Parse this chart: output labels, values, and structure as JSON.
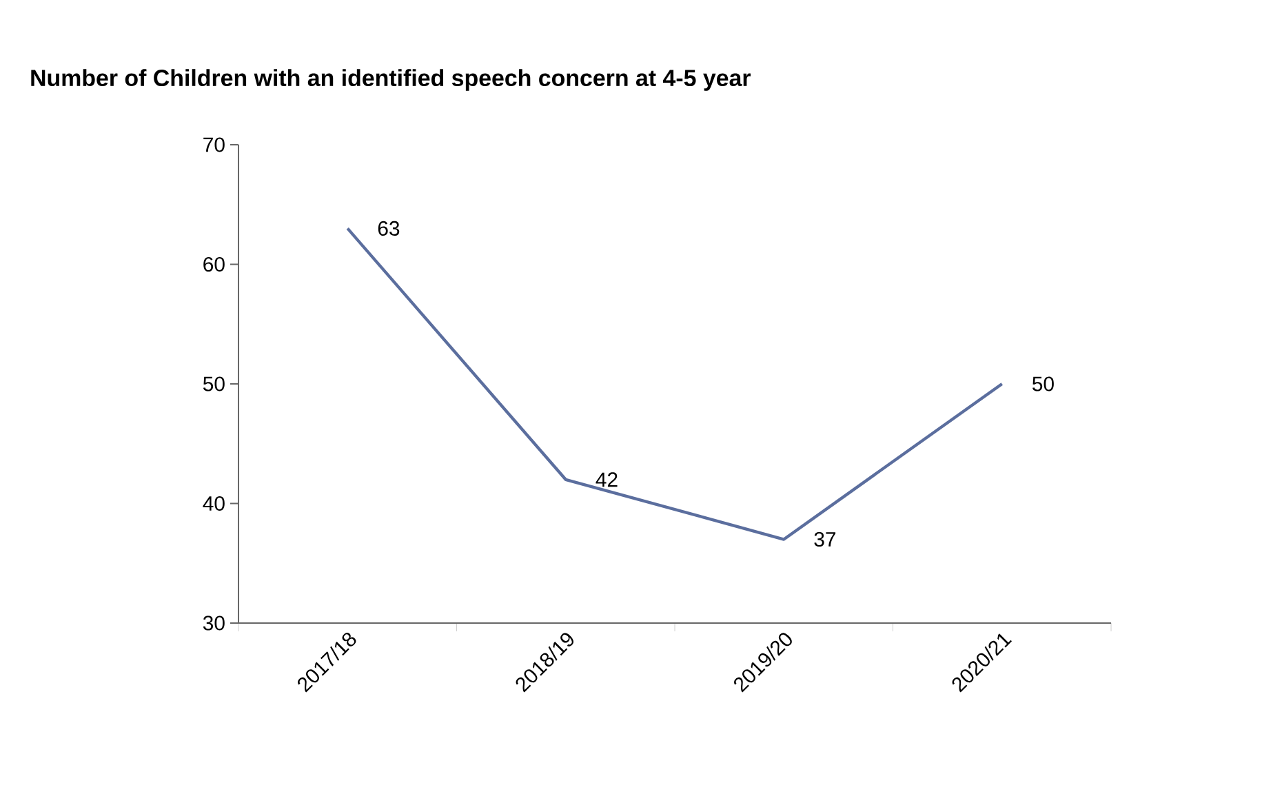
{
  "chart_data": {
    "type": "line",
    "title": "Number of Children with an identified speech concern at 4-5 year",
    "categories": [
      "2017/18",
      "2018/19",
      "2019/20",
      "2020/21"
    ],
    "values": [
      63,
      42,
      37,
      50
    ],
    "color": "#5b6e9e",
    "ylim": [
      30,
      70
    ],
    "yticks": [
      30,
      40,
      50,
      60,
      70
    ],
    "grid": false,
    "marker": "none",
    "line_style": "solid",
    "data_labels": true
  }
}
